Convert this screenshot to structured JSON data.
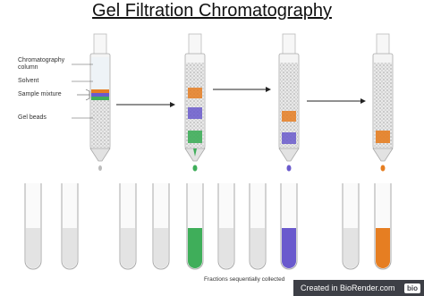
{
  "title": "Gel Filtration Chromatography",
  "labels": [
    "Chromatography column",
    "Solvent",
    "Sample mixture",
    "Gel beads"
  ],
  "caption": "Fractions sequentially collected",
  "footer": {
    "text": "Created in BioRender.com",
    "badge": "bio"
  }
}
